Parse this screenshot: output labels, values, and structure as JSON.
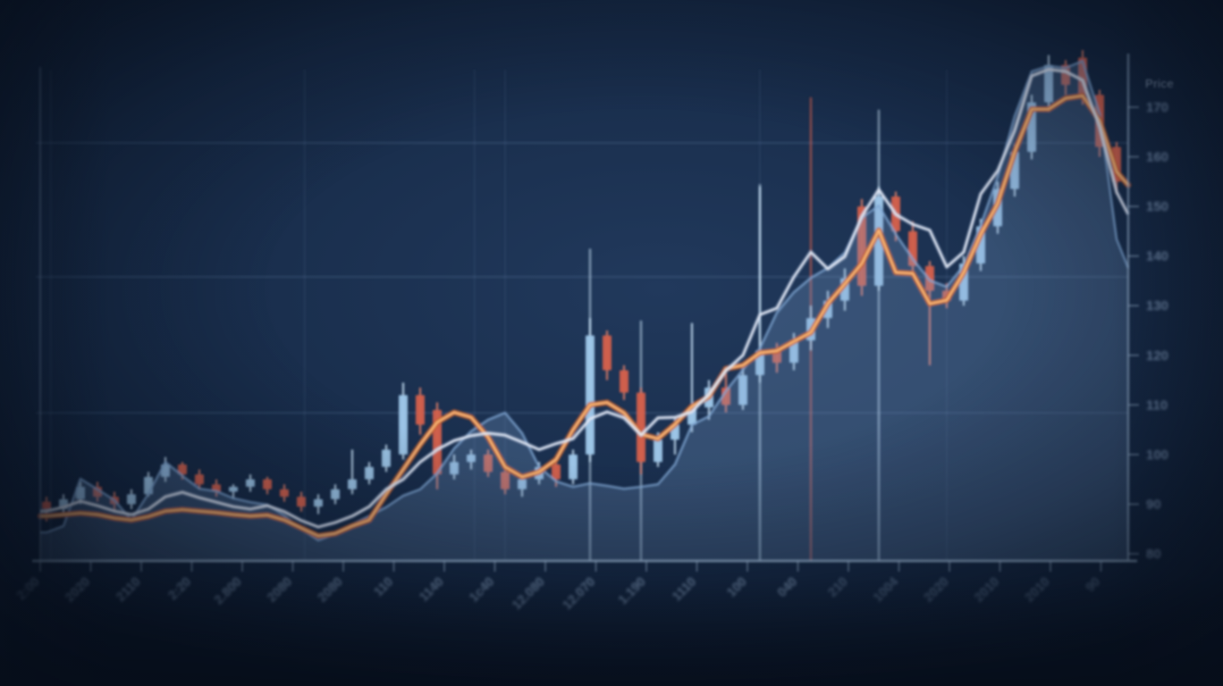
{
  "chart_data": {
    "type": "candlestick",
    "description": "Blurred dark-navy stock market chart: candlesticks with an area (mountain) series, a fast orange moving-average pair and a pale slow moving-average line; price axis on the right, rotated partially-legible tick labels along the bottom.",
    "y_axis_title": "Price",
    "y_ticks": [
      170,
      160,
      150,
      140,
      130,
      120,
      110,
      100,
      90,
      80
    ],
    "ylim": [
      80,
      185
    ],
    "x_tick_labels": [
      "2:00",
      "2020",
      "2110",
      "2:20",
      "2.800",
      "2080",
      "2080",
      "110",
      "1140",
      "1c40",
      "12.080",
      "12.070",
      "1.190",
      "1110",
      "100",
      "040",
      "210",
      "1004",
      "2020",
      "2010",
      "2010",
      "90"
    ],
    "legend": "none",
    "grid": {
      "h_prices": [
        162.8,
        135.8,
        108.4
      ],
      "v_indices": [
        0.25,
        15.2,
        25.2,
        27.0,
        42.0,
        53.0
      ]
    },
    "candles": [
      [
        90.5,
        91.5,
        86.5,
        89
      ],
      [
        89,
        92,
        88,
        91
      ],
      [
        91,
        94.5,
        90,
        93.5
      ],
      [
        93.5,
        94.5,
        90.5,
        91.5
      ],
      [
        91.5,
        92.5,
        88.5,
        90
      ],
      [
        90,
        93,
        89,
        92
      ],
      [
        92,
        96.5,
        91.5,
        95.5
      ],
      [
        95.5,
        99.5,
        94.5,
        98
      ],
      [
        98,
        98.5,
        95,
        96
      ],
      [
        96,
        97,
        93,
        94
      ],
      [
        94,
        95,
        91.5,
        92.5
      ],
      [
        92.5,
        94,
        91,
        93.5
      ],
      [
        93.5,
        96,
        92.5,
        95
      ],
      [
        95,
        95.5,
        92,
        93
      ],
      [
        93,
        94,
        90.5,
        91.5
      ],
      [
        91.5,
        92.5,
        88.5,
        89.5
      ],
      [
        89.5,
        92,
        88,
        91
      ],
      [
        91,
        94,
        90,
        93
      ],
      [
        93,
        101,
        92,
        95
      ],
      [
        95,
        98.5,
        94,
        97.5
      ],
      [
        97.5,
        102,
        96.5,
        101
      ],
      [
        100,
        114.5,
        99,
        112
      ],
      [
        112,
        113.5,
        104,
        106
      ],
      [
        109,
        110.5,
        93,
        96
      ],
      [
        96,
        100,
        95,
        98.5
      ],
      [
        98.5,
        101,
        97,
        100
      ],
      [
        100,
        101,
        95.5,
        96.5
      ],
      [
        96.5,
        97.5,
        92,
        93
      ],
      [
        93,
        96,
        91.5,
        95
      ],
      [
        95,
        98.5,
        94,
        97.5
      ],
      [
        98,
        99,
        93.5,
        95
      ],
      [
        95,
        101,
        94,
        100
      ],
      [
        100,
        127.5,
        98.5,
        124
      ],
      [
        124,
        125,
        115,
        117
      ],
      [
        117,
        118,
        111,
        112.5
      ],
      [
        112.5,
        113.5,
        96,
        98.5
      ],
      [
        98.5,
        104.5,
        97.5,
        103
      ],
      [
        103,
        107.5,
        100,
        106
      ],
      [
        106,
        126.5,
        104.5,
        109.5
      ],
      [
        109.5,
        115,
        107,
        113.5
      ],
      [
        113.5,
        116.5,
        108.5,
        110
      ],
      [
        110,
        117.5,
        109,
        116
      ],
      [
        116,
        154,
        114.5,
        121
      ],
      [
        121,
        122.5,
        116.5,
        118.5
      ],
      [
        118.5,
        124.5,
        117,
        123
      ],
      [
        123,
        130,
        121,
        127.5
      ],
      [
        127.5,
        133,
        125.5,
        131
      ],
      [
        131,
        137.5,
        129,
        135.5
      ],
      [
        150,
        151.5,
        132,
        134
      ],
      [
        134,
        154,
        133,
        152
      ],
      [
        152,
        153,
        143,
        145
      ],
      [
        145,
        147,
        136.5,
        138
      ],
      [
        138,
        139,
        118,
        133
      ],
      [
        133,
        134.5,
        129.5,
        131
      ],
      [
        131,
        140,
        130,
        138.5
      ],
      [
        138.5,
        147.5,
        137,
        146
      ],
      [
        146,
        155,
        144.5,
        153.5
      ],
      [
        153.5,
        162.5,
        152,
        161
      ],
      [
        161,
        172.5,
        159.5,
        171
      ],
      [
        171,
        180.5,
        169,
        178.5
      ],
      [
        178.5,
        179.5,
        172.5,
        174.5
      ],
      [
        180,
        181.5,
        170.5,
        172.5
      ],
      [
        172.5,
        173.5,
        160,
        162
      ],
      [
        162,
        163,
        152.5,
        155
      ]
    ],
    "area": [
      84.3,
      85.6,
      95.1,
      93,
      90.8,
      86.8,
      92.1,
      98.5,
      95.7,
      93.1,
      92.6,
      91.2,
      90.4,
      89.9,
      87.7,
      85,
      82.7,
      84,
      85.9,
      87.6,
      89.4,
      91.7,
      93,
      96.2,
      101.2,
      104.7,
      107,
      108.4,
      104.3,
      97.5,
      94.6,
      93.5,
      94.2,
      93.7,
      93.1,
      93.5,
      94,
      98,
      106,
      107.7,
      112.8,
      117.1,
      121.4,
      128.6,
      132.7,
      135.6,
      137.6,
      140.7,
      147.7,
      150.2,
      144.4,
      139.4,
      135.1,
      133.8,
      138.1,
      146.2,
      156,
      168.2,
      177.2,
      178.3,
      177.9,
      179.3,
      168.6,
      143.4
    ],
    "area_end": 137.6,
    "ma_light": [
      88.6,
      89.4,
      90.6,
      89.7,
      88.6,
      87.9,
      89,
      91.5,
      92.4,
      91.3,
      90.4,
      89.5,
      89,
      89.7,
      88.5,
      86.7,
      85.4,
      86.3,
      87.6,
      89.5,
      93,
      95,
      98.5,
      101,
      102.8,
      103.8,
      104.3,
      103.9,
      102.5,
      101,
      102.2,
      103.2,
      107.2,
      108.6,
      107.4,
      103.9,
      107.4,
      107.5,
      108.6,
      112.2,
      116.9,
      120,
      128.2,
      129.5,
      135.8,
      140.8,
      137.4,
      139.9,
      148,
      153.4,
      148.4,
      146.4,
      145.2,
      137.8,
      140.8,
      152.5,
      157.2,
      165.3,
      176.3,
      177.6,
      177.2,
      175.4,
      166,
      152.9
    ],
    "ma_light_end": 148.4,
    "ma_orange": [
      87.6,
      87.9,
      88.2,
      87.9,
      87.2,
      86.8,
      87.5,
      88.6,
      88.9,
      88.6,
      88.3,
      87.9,
      87.6,
      87.8,
      86.8,
      85.2,
      83.6,
      84.1,
      85.6,
      86.8,
      92,
      97,
      102,
      106.5,
      108.5,
      107.5,
      103.5,
      97.5,
      95.5,
      96.5,
      99,
      105,
      110,
      110.5,
      108.4,
      104.1,
      103.2,
      106.1,
      109.7,
      111.7,
      117.3,
      118,
      120.5,
      120.9,
      122.8,
      124.6,
      130.4,
      134.4,
      138.5,
      145.2,
      136.7,
      136.5,
      130.4,
      131.1,
      136.7,
      144.4,
      150.6,
      161,
      169.6,
      169.6,
      171.8,
      172.3,
      167.3,
      157
    ],
    "ma_orange_end": 154.3,
    "spikes": [
      {
        "i": 32,
        "top": 141.5,
        "tone": "up"
      },
      {
        "i": 35,
        "top": 127,
        "tone": "up"
      },
      {
        "i": 42,
        "top": 154.5,
        "tone": "up"
      },
      {
        "i": 45,
        "top": 172,
        "tone": "down"
      },
      {
        "i": 49,
        "top": 169.5,
        "tone": "up"
      }
    ],
    "palette": {
      "grid": "#7e9cc0",
      "axis": "#a9c4e0",
      "label": "#8fa9c9",
      "candle_up": "#9fc8ea",
      "candle_up_wick": "#c8e2f6",
      "candle_down": "#d4604c",
      "candle_down_wick": "#e4816a",
      "ma_orange_edge": "#c05a2e",
      "ma_orange_core": "#f09a50",
      "ma_orange_glow": "#ffd9a8",
      "ma_light_under": "#aebfe0",
      "ma_light": "#e6ecf8",
      "area_fill": "#7da3cf",
      "area_stroke": "#7fa6d2"
    }
  }
}
